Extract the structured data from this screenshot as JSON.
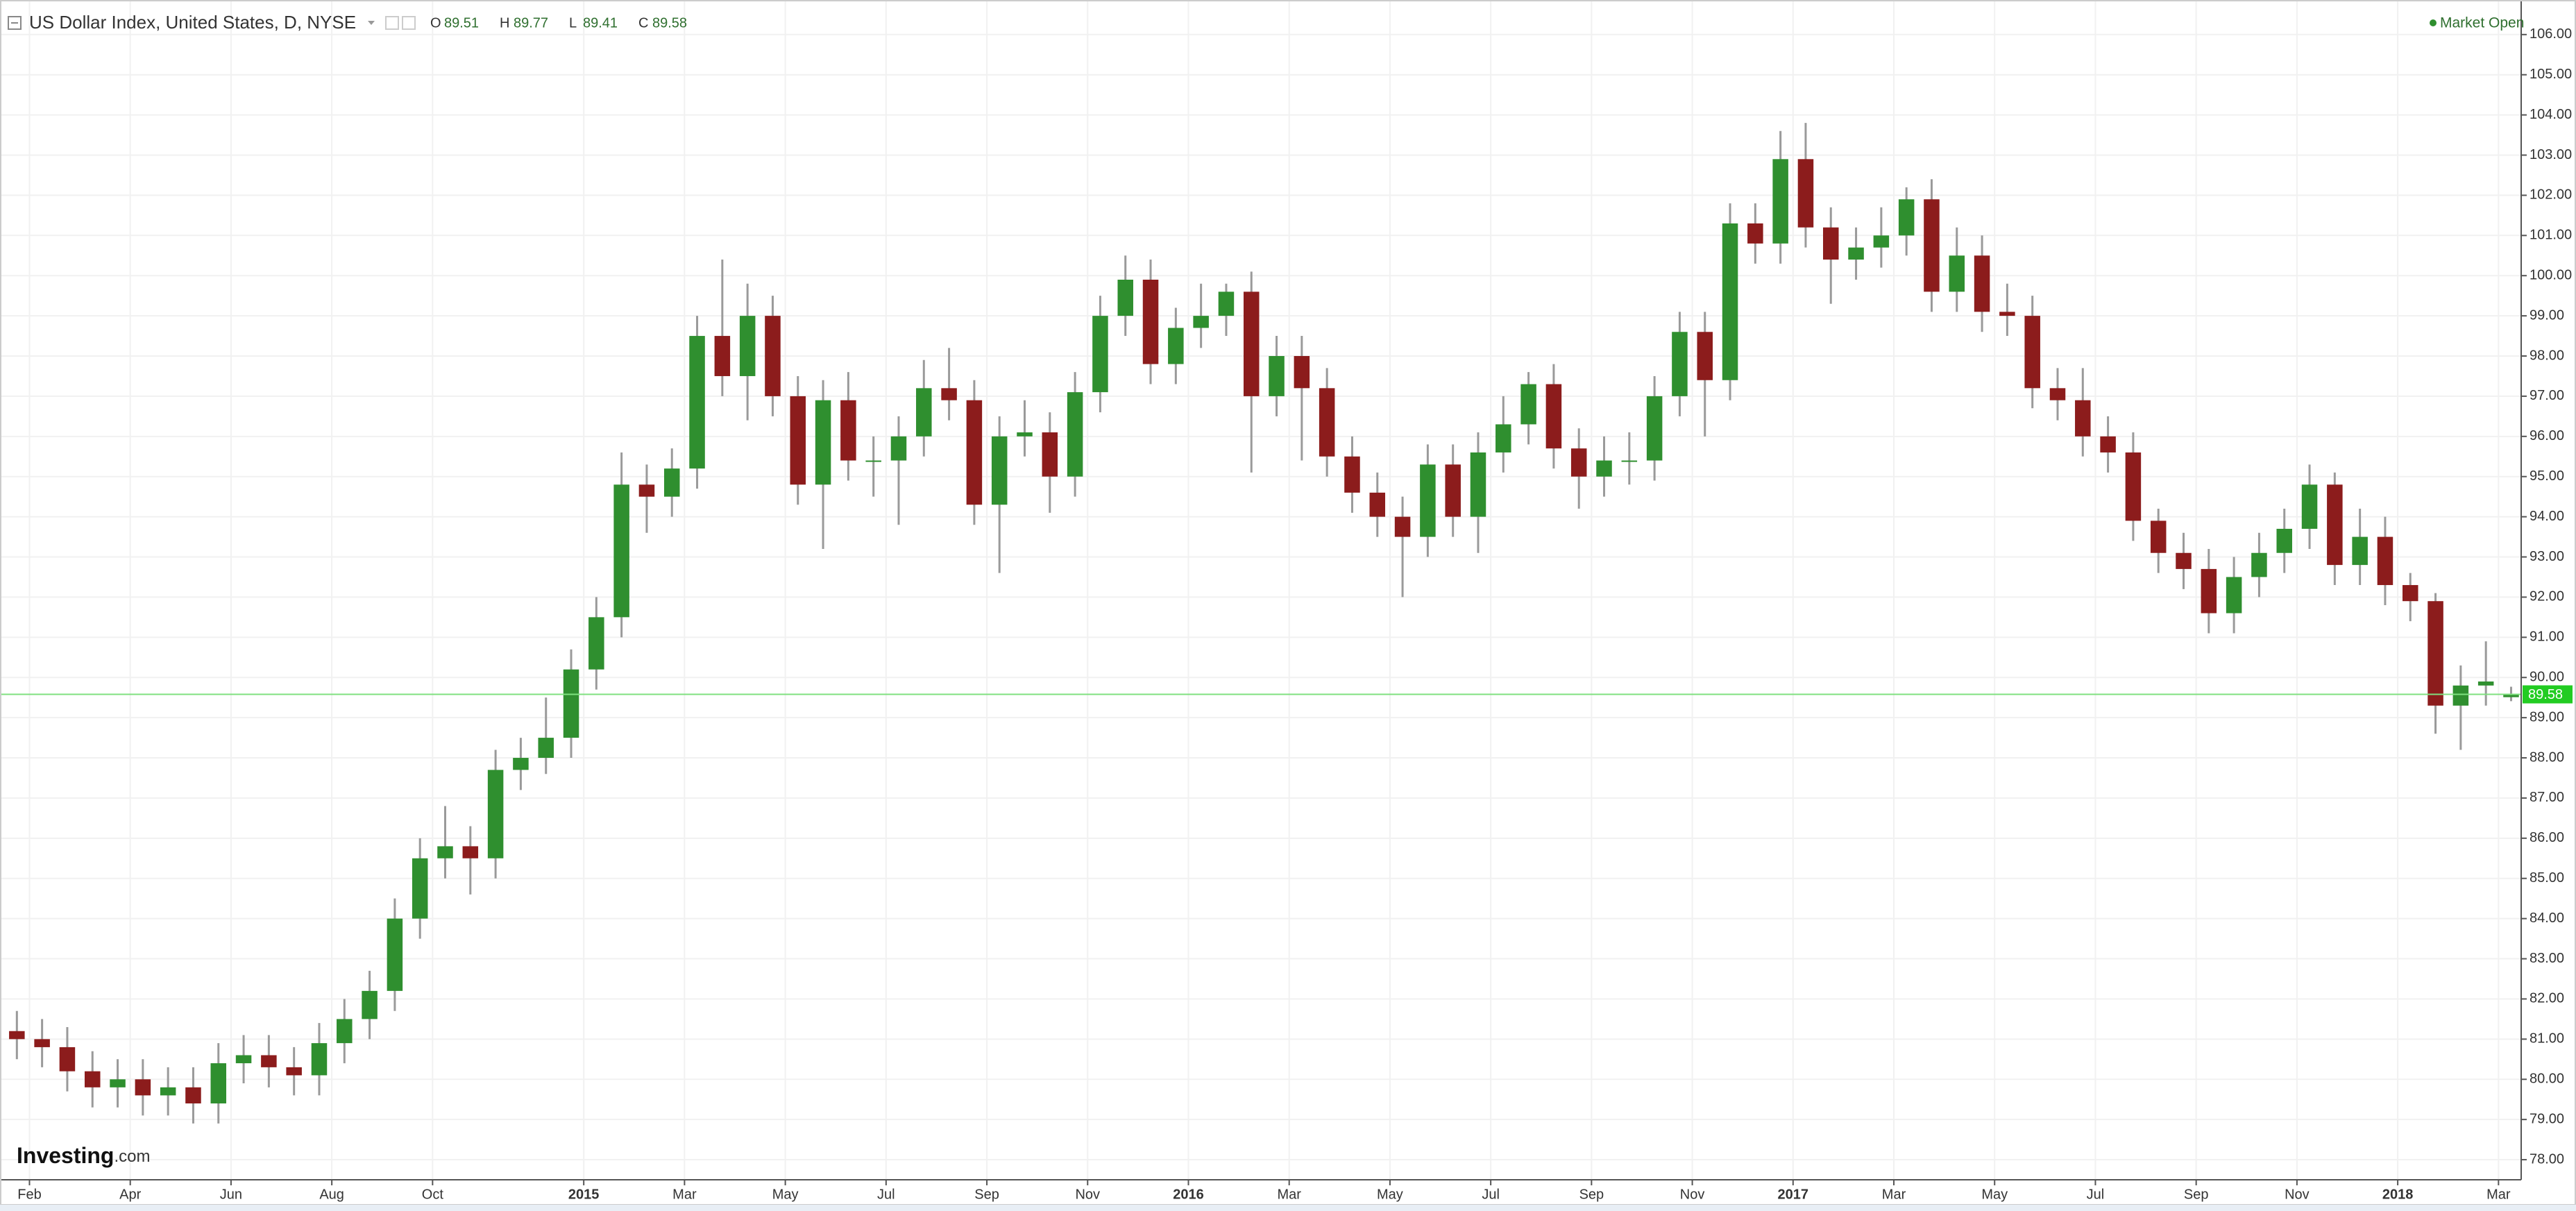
{
  "chart_data": {
    "type": "candlestick",
    "title": "US Dollar Index, United States, D, NYSE",
    "ohlc_labels": [
      "O",
      "H",
      "L",
      "C"
    ],
    "status": "Market Open",
    "watermark": {
      "name": "Investing",
      "suffix": ".com"
    },
    "up_color": "#2f8f2f",
    "down_color": "#8c1c1c",
    "wick_color": "#9a9a9a",
    "price_line_color": "#7fe07f",
    "price_badge_color": "#22cc22",
    "grid": true,
    "x": [
      1,
      2,
      3,
      4,
      5,
      6,
      7,
      8,
      9,
      10,
      11,
      12,
      13,
      14,
      15,
      16,
      17,
      18,
      19,
      20,
      21,
      22,
      23,
      24,
      25,
      26,
      27,
      28,
      29,
      30,
      31,
      32,
      33,
      34,
      35,
      36,
      37,
      38,
      39,
      40,
      41,
      42,
      43,
      44,
      45,
      46,
      47,
      48,
      49,
      50,
      51,
      52,
      53,
      54,
      55,
      56,
      57,
      58,
      59,
      60,
      61,
      62,
      63,
      64,
      65,
      66,
      67,
      68,
      69,
      70,
      71,
      72,
      73,
      74,
      75,
      76,
      77,
      78,
      79,
      80,
      81,
      82,
      83,
      84,
      85,
      86,
      87,
      88,
      89,
      90,
      91,
      92,
      93,
      94,
      95,
      96,
      97,
      98,
      99,
      100
    ],
    "open": [
      81.2,
      81.0,
      80.8,
      80.2,
      79.8,
      80.0,
      79.6,
      79.8,
      79.4,
      80.4,
      80.6,
      80.3,
      80.1,
      80.9,
      81.5,
      82.2,
      84.0,
      85.5,
      85.8,
      85.5,
      87.7,
      88.0,
      88.5,
      90.2,
      91.5,
      94.8,
      94.5,
      95.2,
      98.5,
      97.5,
      99.0,
      97.0,
      94.8,
      96.9,
      95.4,
      95.4,
      96.0,
      97.2,
      96.9,
      94.3,
      96.0,
      96.1,
      95.0,
      97.1,
      99.0,
      99.9,
      97.8,
      98.7,
      99.0,
      99.6,
      97.0,
      98.0,
      97.2,
      95.5,
      94.6,
      94.0,
      93.5,
      95.3,
      94.0,
      95.6,
      96.3,
      97.3,
      95.7,
      95.0,
      95.4,
      95.4,
      97.0,
      98.6,
      97.4,
      101.3,
      100.8,
      102.9,
      101.2,
      100.4,
      100.7,
      101.0,
      101.9,
      99.6,
      100.5,
      99.1,
      99.0,
      97.2,
      96.9,
      96.0,
      95.6,
      93.9,
      93.1,
      92.7,
      91.6,
      92.5,
      93.1,
      93.7,
      94.8,
      92.8,
      93.5,
      92.3,
      91.9,
      89.3,
      89.8,
      89.51
    ],
    "high": [
      81.7,
      81.5,
      81.3,
      80.7,
      80.5,
      80.5,
      80.3,
      80.3,
      80.9,
      81.1,
      81.1,
      80.8,
      81.4,
      82.0,
      82.7,
      84.5,
      86.0,
      86.8,
      86.3,
      88.2,
      88.5,
      89.5,
      90.7,
      92.0,
      95.6,
      95.3,
      95.7,
      99.0,
      100.4,
      99.8,
      99.5,
      97.5,
      97.4,
      97.6,
      96.0,
      96.5,
      97.9,
      98.2,
      97.4,
      96.5,
      96.9,
      96.6,
      97.6,
      99.5,
      100.5,
      100.4,
      99.2,
      99.8,
      99.8,
      100.1,
      98.5,
      98.5,
      97.7,
      96.0,
      95.1,
      94.5,
      95.8,
      95.8,
      96.1,
      97.0,
      97.6,
      97.8,
      96.2,
      96.0,
      96.1,
      97.5,
      99.1,
      99.1,
      101.8,
      101.8,
      103.6,
      103.8,
      101.7,
      101.2,
      101.7,
      102.2,
      102.4,
      101.2,
      101.0,
      99.8,
      99.5,
      97.7,
      97.7,
      96.5,
      96.1,
      94.2,
      93.6,
      93.2,
      93.0,
      93.6,
      94.2,
      95.3,
      95.1,
      94.2,
      94.0,
      92.6,
      92.1,
      90.3,
      90.9,
      89.77
    ],
    "low": [
      80.5,
      80.3,
      79.7,
      79.3,
      79.3,
      79.1,
      79.1,
      78.9,
      78.9,
      79.9,
      79.8,
      79.6,
      79.6,
      80.4,
      81.0,
      81.7,
      83.5,
      85.0,
      84.6,
      85.0,
      87.2,
      87.6,
      88.0,
      89.7,
      91.0,
      93.6,
      94.0,
      94.7,
      97.0,
      96.4,
      96.5,
      94.3,
      93.2,
      94.9,
      94.5,
      93.8,
      95.5,
      96.4,
      93.8,
      92.6,
      95.5,
      94.1,
      94.5,
      96.6,
      98.5,
      97.3,
      97.3,
      98.2,
      98.5,
      95.1,
      96.5,
      95.4,
      95.0,
      94.1,
      93.5,
      92.0,
      93.0,
      93.5,
      93.1,
      95.1,
      95.8,
      95.2,
      94.2,
      94.5,
      94.8,
      94.9,
      96.5,
      96.0,
      96.9,
      100.3,
      100.3,
      100.7,
      99.3,
      99.9,
      100.2,
      100.5,
      99.1,
      99.1,
      98.6,
      98.5,
      96.7,
      96.4,
      95.5,
      95.1,
      93.4,
      92.6,
      92.2,
      91.1,
      91.1,
      92.0,
      92.6,
      93.2,
      92.3,
      92.3,
      91.8,
      91.4,
      88.6,
      88.2,
      89.3,
      89.41
    ],
    "close": [
      81.0,
      80.8,
      80.2,
      79.8,
      80.0,
      79.6,
      79.8,
      79.4,
      80.4,
      80.6,
      80.3,
      80.1,
      80.9,
      81.5,
      82.2,
      84.0,
      85.5,
      85.8,
      85.5,
      87.7,
      88.0,
      88.5,
      90.2,
      91.5,
      94.8,
      94.5,
      95.2,
      98.5,
      97.5,
      99.0,
      97.0,
      94.8,
      96.9,
      95.4,
      95.4,
      96.0,
      97.2,
      96.9,
      94.3,
      96.0,
      96.1,
      95.0,
      97.1,
      99.0,
      99.9,
      97.8,
      98.7,
      99.0,
      99.6,
      97.0,
      98.0,
      97.2,
      95.5,
      94.6,
      94.0,
      93.5,
      95.3,
      94.0,
      95.6,
      96.3,
      97.3,
      95.7,
      95.0,
      95.4,
      95.4,
      97.0,
      98.6,
      97.4,
      101.3,
      100.8,
      102.9,
      101.2,
      100.4,
      100.7,
      101.0,
      101.9,
      99.6,
      100.5,
      99.1,
      99.0,
      97.2,
      96.9,
      96.0,
      95.6,
      93.9,
      93.1,
      92.7,
      91.6,
      92.5,
      93.1,
      93.7,
      94.8,
      92.8,
      93.5,
      92.3,
      91.9,
      89.3,
      89.8,
      89.9,
      89.58
    ],
    "xlim": [
      0.83,
      100.9
    ],
    "xticks": [
      {
        "value": 2,
        "label": "Feb"
      },
      {
        "value": 6,
        "label": "Apr"
      },
      {
        "value": 10,
        "label": "Jun"
      },
      {
        "value": 14,
        "label": "Aug"
      },
      {
        "value": 18,
        "label": "Oct"
      },
      {
        "value": 24,
        "label": "2015"
      },
      {
        "value": 28,
        "label": "Mar"
      },
      {
        "value": 32,
        "label": "May"
      },
      {
        "value": 36,
        "label": "Jul"
      },
      {
        "value": 40,
        "label": "Sep"
      },
      {
        "value": 44,
        "label": "Nov"
      },
      {
        "value": 48,
        "label": "2016"
      },
      {
        "value": 52,
        "label": "Mar"
      },
      {
        "value": 56,
        "label": "May"
      },
      {
        "value": 60,
        "label": "Jul"
      },
      {
        "value": 64,
        "label": "Sep"
      },
      {
        "value": 68,
        "label": "Nov"
      },
      {
        "value": 72,
        "label": "2017"
      },
      {
        "value": 76,
        "label": "Mar"
      },
      {
        "value": 80,
        "label": "May"
      },
      {
        "value": 84,
        "label": "Jul"
      },
      {
        "value": 88,
        "label": "Sep"
      },
      {
        "value": 92,
        "label": "Nov"
      },
      {
        "value": 96,
        "label": "2018"
      },
      {
        "value": 100,
        "label": "Mar"
      }
    ],
    "ylim": [
      77.5,
      106.86
    ],
    "yticks": [
      {
        "value": 78,
        "label": "78.00"
      },
      {
        "value": 79,
        "label": "79.00"
      },
      {
        "value": 80,
        "label": "80.00"
      },
      {
        "value": 81,
        "label": "81.00"
      },
      {
        "value": 82,
        "label": "82.00"
      },
      {
        "value": 83,
        "label": "83.00"
      },
      {
        "value": 84,
        "label": "84.00"
      },
      {
        "value": 85,
        "label": "85.00"
      },
      {
        "value": 86,
        "label": "86.00"
      },
      {
        "value": 87,
        "label": "87.00"
      },
      {
        "value": 88,
        "label": "88.00"
      },
      {
        "value": 89,
        "label": "89.00"
      },
      {
        "value": 90,
        "label": "90.00"
      },
      {
        "value": 91,
        "label": "91.00"
      },
      {
        "value": 92,
        "label": "92.00"
      },
      {
        "value": 93,
        "label": "93.00"
      },
      {
        "value": 94,
        "label": "94.00"
      },
      {
        "value": 95,
        "label": "95.00"
      },
      {
        "value": 96,
        "label": "96.00"
      },
      {
        "value": 97,
        "label": "97.00"
      },
      {
        "value": 98,
        "label": "98.00"
      },
      {
        "value": 99,
        "label": "99.00"
      },
      {
        "value": 100,
        "label": "100.00"
      },
      {
        "value": 101,
        "label": "101.00"
      },
      {
        "value": 102,
        "label": "102.00"
      },
      {
        "value": 103,
        "label": "103.00"
      },
      {
        "value": 104,
        "label": "104.00"
      },
      {
        "value": 105,
        "label": "105.00"
      },
      {
        "value": 106,
        "label": "106.00"
      }
    ]
  }
}
